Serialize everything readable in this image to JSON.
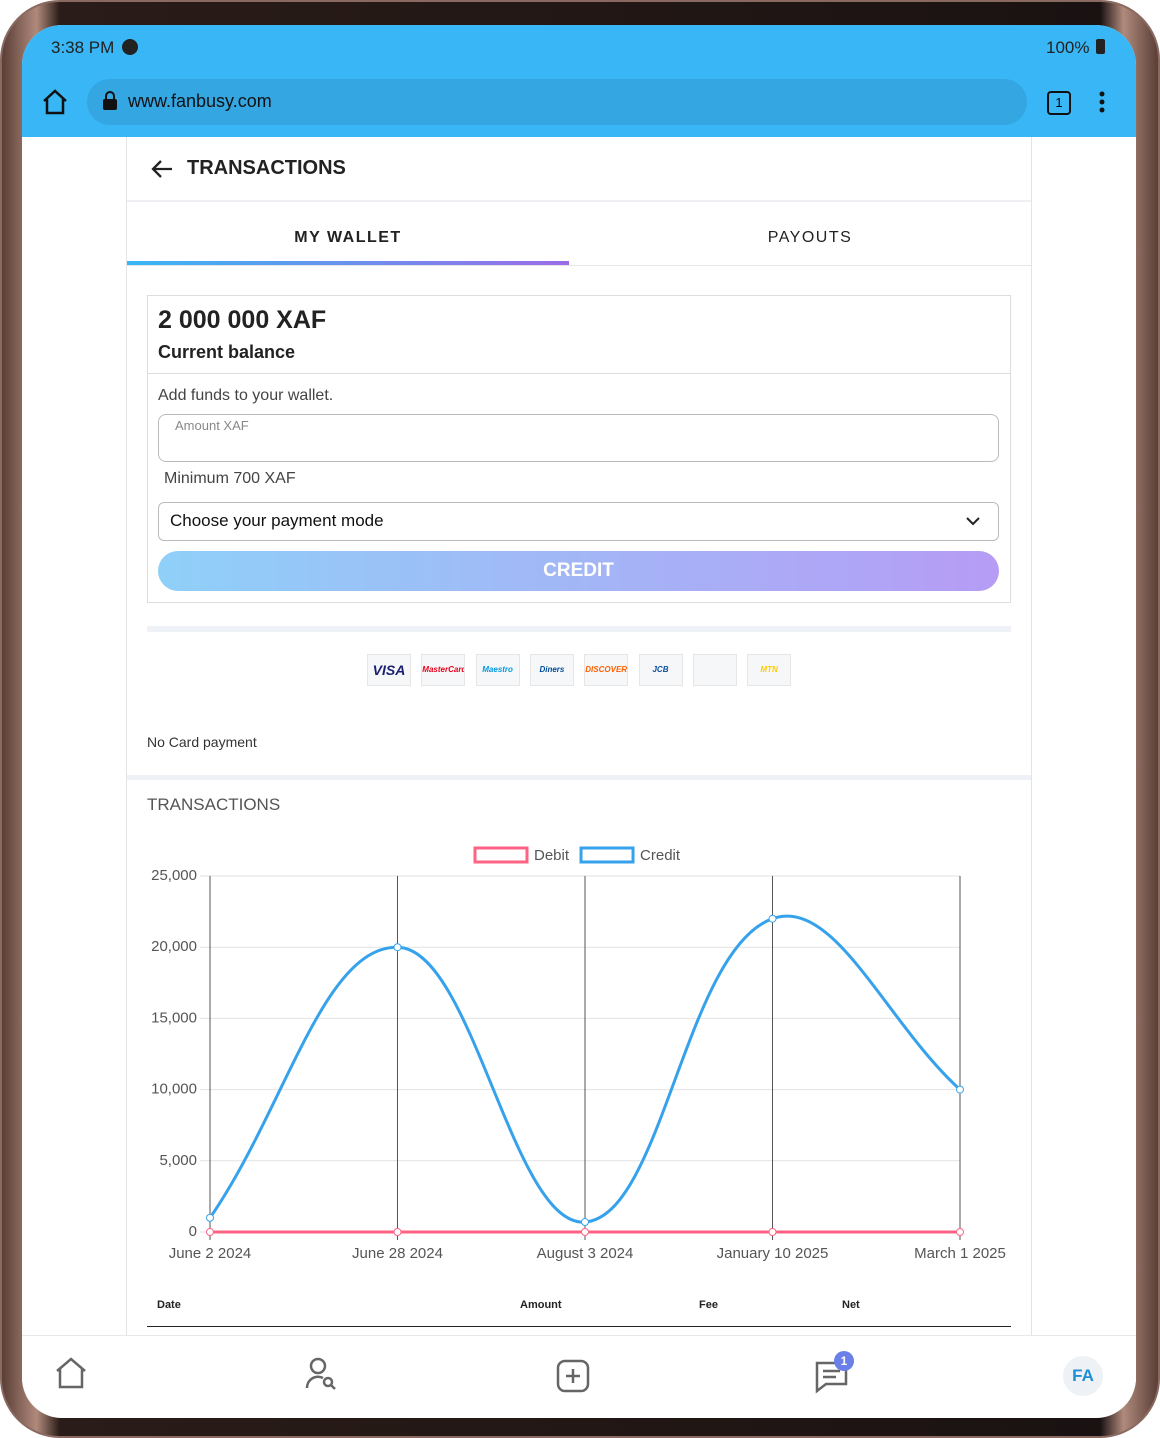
{
  "status_bar": {
    "time": "3:38 PM",
    "battery": "100%"
  },
  "browser": {
    "url": "www.fanbusy.com",
    "tab_count": "1"
  },
  "header": {
    "title": "TRANSACTIONS"
  },
  "tabs": [
    "MY WALLET",
    "PAYOUTS"
  ],
  "wallet": {
    "balance": "2 000 000 XAF",
    "balance_label": "Current balance",
    "add_funds": "Add funds to your wallet.",
    "amount_placeholder": "Amount XAF",
    "minimum": "Minimum 700 XAF",
    "payment_mode": "Choose your payment mode",
    "button": "CREDIT"
  },
  "cards": [
    "VISA",
    "MasterCard",
    "Maestro",
    "Diners Club",
    "DISCOVER",
    "JCB",
    "",
    "MTN"
  ],
  "no_card": "No Card payment",
  "section_title": "TRANSACTIONS",
  "chart_data": {
    "type": "line",
    "categories": [
      "June 2 2024",
      "June 28 2024",
      "August 3 2024",
      "January 10 2025",
      "March 1 2025"
    ],
    "series": [
      {
        "name": "Debit",
        "color": "#ff6384",
        "values": [
          0,
          0,
          0,
          0,
          0
        ]
      },
      {
        "name": "Credit",
        "color": "#36a2eb",
        "values": [
          1000,
          20000,
          700,
          22000,
          10000
        ]
      }
    ],
    "ylim": [
      0,
      25000
    ],
    "yticks": [
      0,
      {
        "value": 5000,
        "label": "5,000"
      },
      {
        "value": 10000,
        "label": "10,000"
      },
      {
        "value": 15000,
        "label": "15,000"
      },
      {
        "value": 20000,
        "label": "20,000"
      },
      {
        "value": 25000,
        "label": "25,000"
      }
    ],
    "grid": true,
    "legend": "top"
  },
  "table": {
    "headers": [
      "Date",
      "Amount",
      "Fee",
      "Net"
    ]
  },
  "nav": {
    "avatar": "FA",
    "badge": "1"
  }
}
